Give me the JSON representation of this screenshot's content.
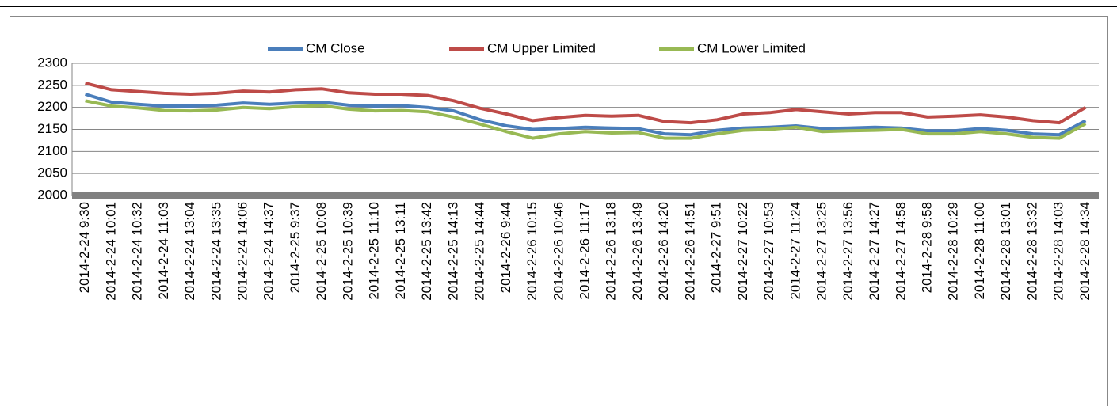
{
  "chart_data": {
    "type": "line",
    "categories": [
      "2014-2-24 9:30",
      "2014-2-24 10:01",
      "2014-2-24 10:32",
      "2014-2-24 11:03",
      "2014-2-24 13:04",
      "2014-2-24 13:35",
      "2014-2-24 14:06",
      "2014-2-24 14:37",
      "2014-2-25 9:37",
      "2014-2-25 10:08",
      "2014-2-25 10:39",
      "2014-2-25 11:10",
      "2014-2-25 13:11",
      "2014-2-25 13:42",
      "2014-2-25 14:13",
      "2014-2-25 14:44",
      "2014-2-26 9:44",
      "2014-2-26 10:15",
      "2014-2-26 10:46",
      "2014-2-26 11:17",
      "2014-2-26 13:18",
      "2014-2-26 13:49",
      "2014-2-26 14:20",
      "2014-2-26 14:51",
      "2014-2-27 9:51",
      "2014-2-27 10:22",
      "2014-2-27 10:53",
      "2014-2-27 11:24",
      "2014-2-27 13:25",
      "2014-2-27 13:56",
      "2014-2-27 14:27",
      "2014-2-27 14:58",
      "2014-2-28 9:58",
      "2014-2-28 10:29",
      "2014-2-28 11:00",
      "2014-2-28 13:01",
      "2014-2-28 13:32",
      "2014-2-28 14:03",
      "2014-2-28 14:34"
    ],
    "series": [
      {
        "name": "CM Close",
        "color": "#4a7ebb",
        "values": [
          2230,
          2212,
          2207,
          2203,
          2203,
          2205,
          2210,
          2207,
          2210,
          2212,
          2205,
          2203,
          2204,
          2200,
          2192,
          2172,
          2158,
          2150,
          2152,
          2155,
          2153,
          2152,
          2140,
          2138,
          2148,
          2153,
          2155,
          2158,
          2152,
          2153,
          2155,
          2153,
          2147,
          2147,
          2152,
          2148,
          2140,
          2138,
          2170
        ]
      },
      {
        "name": "CM Upper Limited",
        "color": "#be4b48",
        "values": [
          2255,
          2240,
          2236,
          2232,
          2230,
          2232,
          2237,
          2235,
          2240,
          2242,
          2233,
          2230,
          2230,
          2227,
          2215,
          2198,
          2185,
          2170,
          2177,
          2182,
          2180,
          2182,
          2168,
          2165,
          2172,
          2185,
          2188,
          2195,
          2190,
          2185,
          2188,
          2188,
          2178,
          2180,
          2183,
          2178,
          2170,
          2165,
          2200
        ]
      },
      {
        "name": "CM Lower Limited",
        "color": "#98b954",
        "values": [
          2215,
          2203,
          2199,
          2193,
          2192,
          2194,
          2200,
          2197,
          2202,
          2204,
          2196,
          2192,
          2193,
          2190,
          2178,
          2162,
          2145,
          2130,
          2140,
          2145,
          2142,
          2143,
          2130,
          2130,
          2140,
          2148,
          2150,
          2155,
          2145,
          2147,
          2148,
          2150,
          2140,
          2140,
          2145,
          2140,
          2132,
          2130,
          2163
        ]
      }
    ],
    "ylim": [
      2000,
      2300
    ],
    "yticks": [
      2000,
      2050,
      2100,
      2150,
      2200,
      2250,
      2300
    ],
    "grid": true
  }
}
